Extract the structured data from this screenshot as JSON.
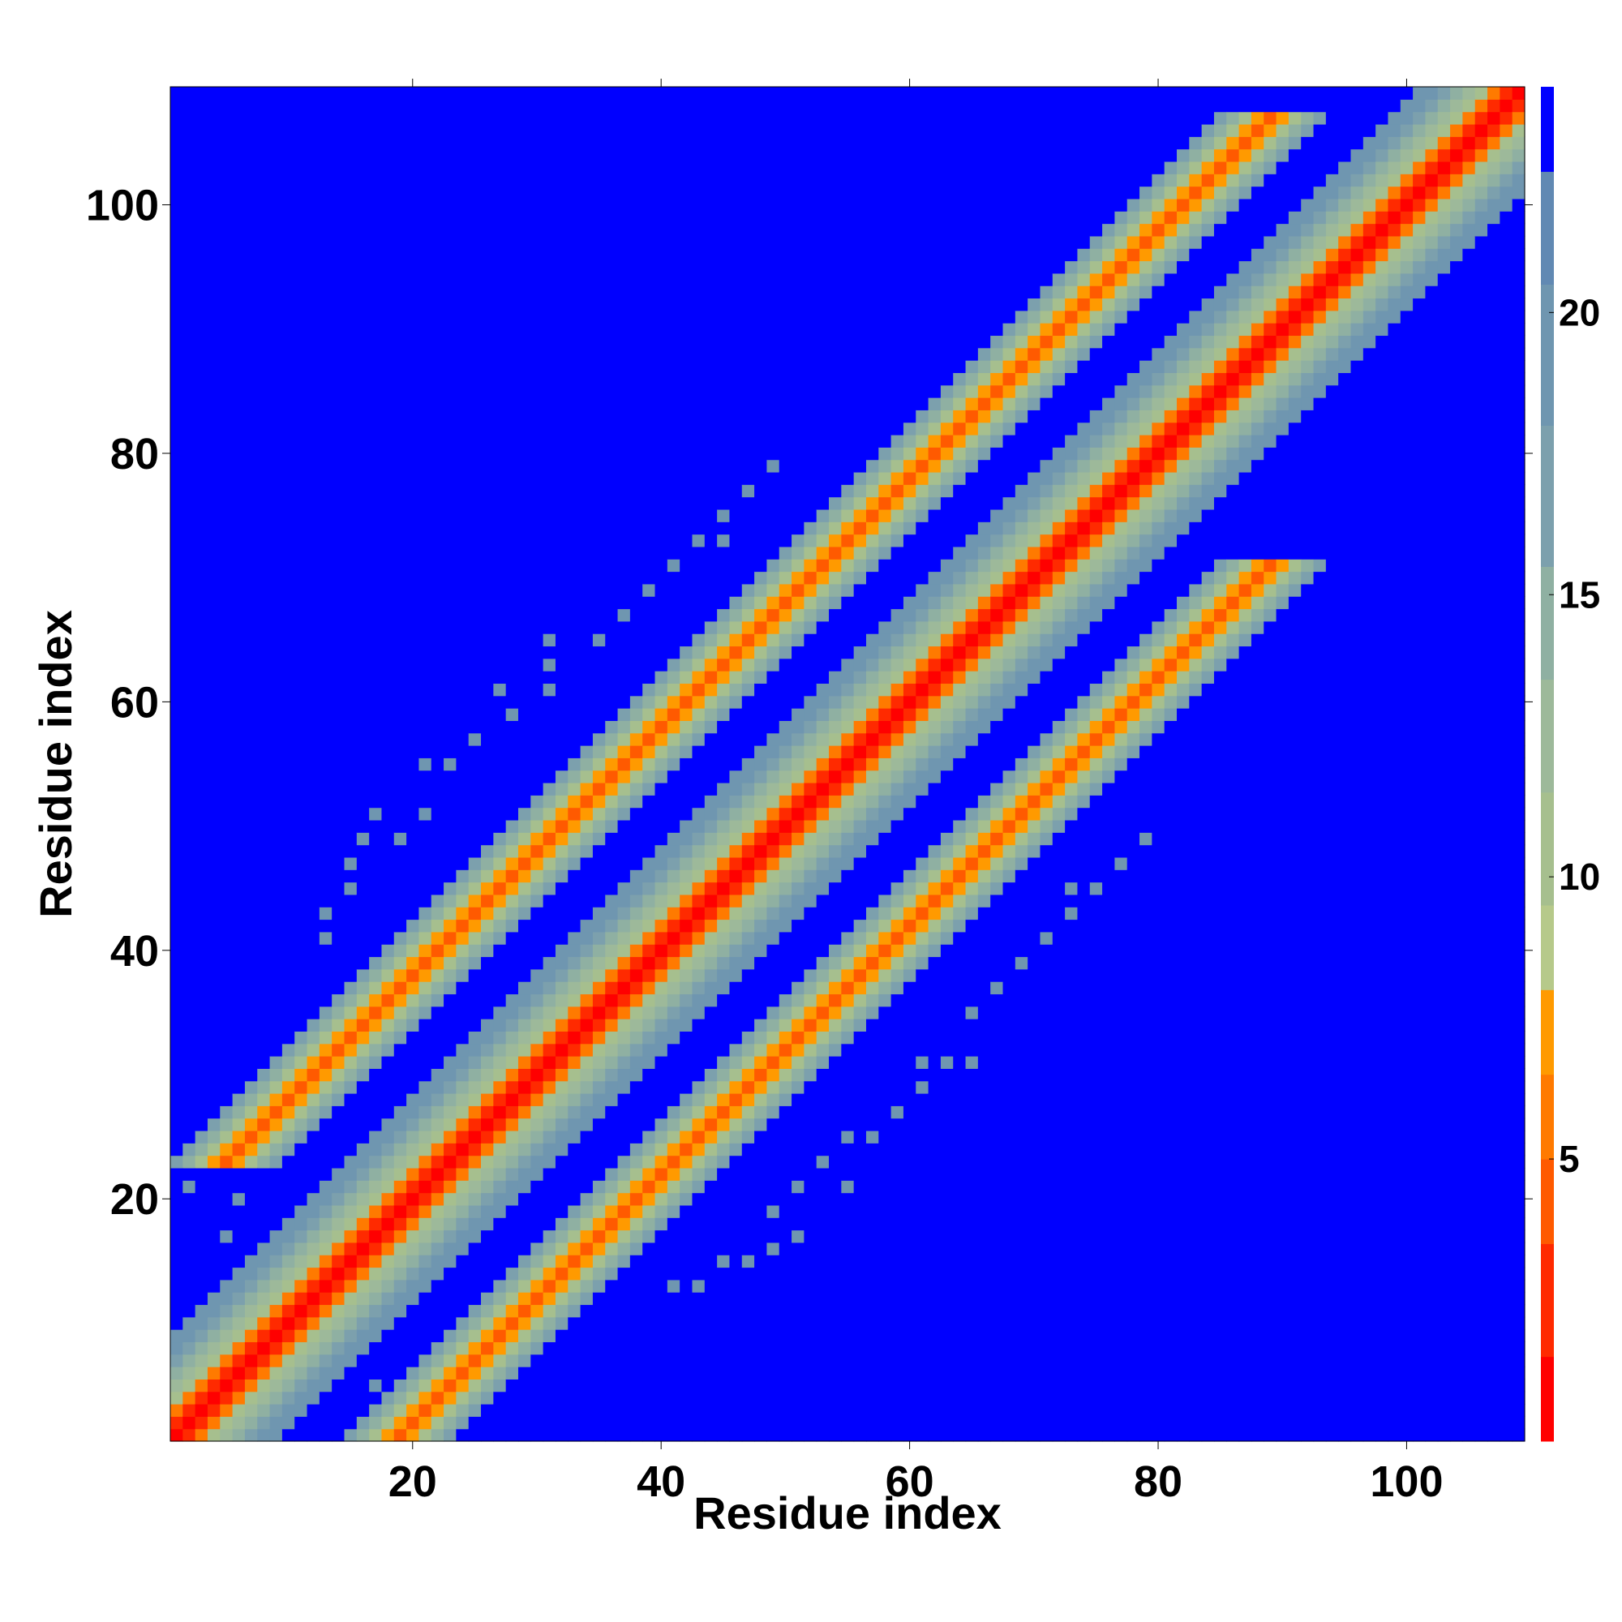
{
  "chart_data": {
    "type": "heatmap",
    "title": "",
    "xlabel": "Residue index",
    "ylabel": "Residue index",
    "xlim": [
      0.5,
      109.5
    ],
    "ylim": [
      0.5,
      109.5
    ],
    "n_residues": 109,
    "x_ticks": [
      20,
      40,
      60,
      80,
      100
    ],
    "y_ticks": [
      20,
      40,
      60,
      80,
      100
    ],
    "colorbar": {
      "range": [
        0,
        24
      ],
      "ticks": [
        5,
        10,
        15,
        20
      ],
      "background_value": 24,
      "bins": [
        {
          "from": 0,
          "to": 1.5,
          "color": "#ff0000"
        },
        {
          "from": 1.5,
          "to": 3.5,
          "color": "#ff2a00"
        },
        {
          "from": 3.5,
          "to": 5,
          "color": "#ff5a00"
        },
        {
          "from": 5,
          "to": 6.5,
          "color": "#ff7a00"
        },
        {
          "from": 6.5,
          "to": 8,
          "color": "#ff9a00"
        },
        {
          "from": 8,
          "to": 9.5,
          "color": "#b6c98a"
        },
        {
          "from": 9.5,
          "to": 11.5,
          "color": "#a6bf8e"
        },
        {
          "from": 11.5,
          "to": 13.5,
          "color": "#9db99a"
        },
        {
          "from": 13.5,
          "to": 15.5,
          "color": "#8fb0a2"
        },
        {
          "from": 15.5,
          "to": 18,
          "color": "#7ca0ad"
        },
        {
          "from": 18,
          "to": 20.5,
          "color": "#6f96b0"
        },
        {
          "from": 20.5,
          "to": 22.5,
          "color": "#6189b3"
        },
        {
          "from": 22.5,
          "to": 24,
          "color": "#0000ff"
        }
      ]
    },
    "structure": {
      "diagonal_band": {
        "offset": 0,
        "half_width": 8,
        "description": "self-contact distance near 0 on diagonal increasing to ~20 at |i-j|=8"
      },
      "off_diagonal_bands": [
        {
          "offset": 18,
          "from_residue": 5,
          "to_residue": 89,
          "min_value": 4.5,
          "half_width": 4
        },
        {
          "offset": -18,
          "from_residue": 5,
          "to_residue": 89,
          "min_value": 4.5,
          "half_width": 4
        }
      ],
      "scattered_contacts": [
        {
          "x": 2,
          "y": 21,
          "v": 18
        },
        {
          "x": 4,
          "y": 23,
          "v": 18
        },
        {
          "x": 5,
          "y": 17,
          "v": 18
        },
        {
          "x": 6,
          "y": 20,
          "v": 18
        },
        {
          "x": 13,
          "y": 41,
          "v": 18
        },
        {
          "x": 13,
          "y": 43,
          "v": 18
        },
        {
          "x": 15,
          "y": 45,
          "v": 18
        },
        {
          "x": 15,
          "y": 47,
          "v": 18
        },
        {
          "x": 16,
          "y": 49,
          "v": 18
        },
        {
          "x": 17,
          "y": 51,
          "v": 18
        },
        {
          "x": 19,
          "y": 49,
          "v": 18
        },
        {
          "x": 21,
          "y": 51,
          "v": 18
        },
        {
          "x": 21,
          "y": 55,
          "v": 18
        },
        {
          "x": 23,
          "y": 55,
          "v": 18
        },
        {
          "x": 25,
          "y": 57,
          "v": 18
        },
        {
          "x": 28,
          "y": 59,
          "v": 18
        },
        {
          "x": 27,
          "y": 61,
          "v": 18
        },
        {
          "x": 31,
          "y": 61,
          "v": 18
        },
        {
          "x": 31,
          "y": 63,
          "v": 18
        },
        {
          "x": 31,
          "y": 65,
          "v": 18
        },
        {
          "x": 35,
          "y": 65,
          "v": 18
        },
        {
          "x": 37,
          "y": 67,
          "v": 18
        },
        {
          "x": 39,
          "y": 69,
          "v": 18
        },
        {
          "x": 41,
          "y": 71,
          "v": 18
        },
        {
          "x": 43,
          "y": 73,
          "v": 18
        },
        {
          "x": 45,
          "y": 73,
          "v": 18
        },
        {
          "x": 45,
          "y": 75,
          "v": 18
        },
        {
          "x": 47,
          "y": 77,
          "v": 18
        },
        {
          "x": 49,
          "y": 79,
          "v": 18
        },
        {
          "x": 21,
          "y": 2,
          "v": 18
        },
        {
          "x": 23,
          "y": 4,
          "v": 18
        },
        {
          "x": 17,
          "y": 5,
          "v": 18
        },
        {
          "x": 41,
          "y": 13,
          "v": 18
        },
        {
          "x": 43,
          "y": 13,
          "v": 18
        },
        {
          "x": 45,
          "y": 15,
          "v": 18
        },
        {
          "x": 47,
          "y": 15,
          "v": 18
        },
        {
          "x": 49,
          "y": 16,
          "v": 18
        },
        {
          "x": 51,
          "y": 17,
          "v": 18
        },
        {
          "x": 49,
          "y": 19,
          "v": 18
        },
        {
          "x": 51,
          "y": 21,
          "v": 18
        },
        {
          "x": 53,
          "y": 23,
          "v": 18
        },
        {
          "x": 55,
          "y": 21,
          "v": 18
        },
        {
          "x": 55,
          "y": 25,
          "v": 18
        },
        {
          "x": 57,
          "y": 25,
          "v": 18
        },
        {
          "x": 59,
          "y": 27,
          "v": 18
        },
        {
          "x": 61,
          "y": 31,
          "v": 18
        },
        {
          "x": 61,
          "y": 29,
          "v": 18
        },
        {
          "x": 63,
          "y": 31,
          "v": 18
        },
        {
          "x": 65,
          "y": 31,
          "v": 18
        },
        {
          "x": 65,
          "y": 35,
          "v": 18
        },
        {
          "x": 67,
          "y": 37,
          "v": 18
        },
        {
          "x": 69,
          "y": 39,
          "v": 18
        },
        {
          "x": 71,
          "y": 41,
          "v": 18
        },
        {
          "x": 73,
          "y": 43,
          "v": 18
        },
        {
          "x": 73,
          "y": 45,
          "v": 18
        },
        {
          "x": 75,
          "y": 45,
          "v": 18
        },
        {
          "x": 77,
          "y": 47,
          "v": 18
        },
        {
          "x": 79,
          "y": 49,
          "v": 18
        }
      ]
    }
  }
}
